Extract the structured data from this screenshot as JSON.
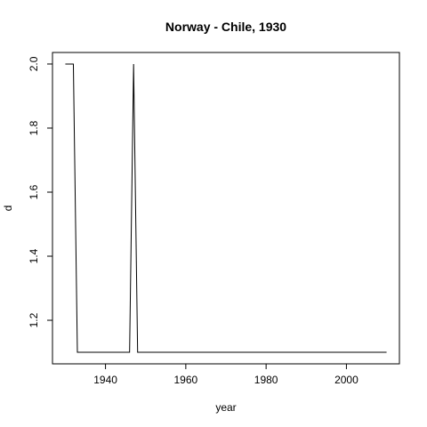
{
  "chart_data": {
    "type": "line",
    "title": "Norway - Chile, 1930",
    "xlabel": "year",
    "ylabel": "d",
    "xlim": [
      1926.8,
      2013.2
    ],
    "ylim": [
      1.064,
      2.036
    ],
    "xticks": [
      1940,
      1960,
      1980,
      2000
    ],
    "yticks": [
      1.2,
      1.4,
      1.6,
      1.8,
      2.0
    ],
    "ytick_labels": [
      "1.2",
      "1.4",
      "1.6",
      "1.8",
      "2.0"
    ],
    "grid": false,
    "series": [
      {
        "x": [
          1930,
          1932,
          1933,
          1946,
          1947,
          1948,
          2010
        ],
        "y": [
          2.0,
          2.0,
          1.1,
          1.1,
          2.0,
          1.1,
          1.1
        ]
      }
    ]
  }
}
